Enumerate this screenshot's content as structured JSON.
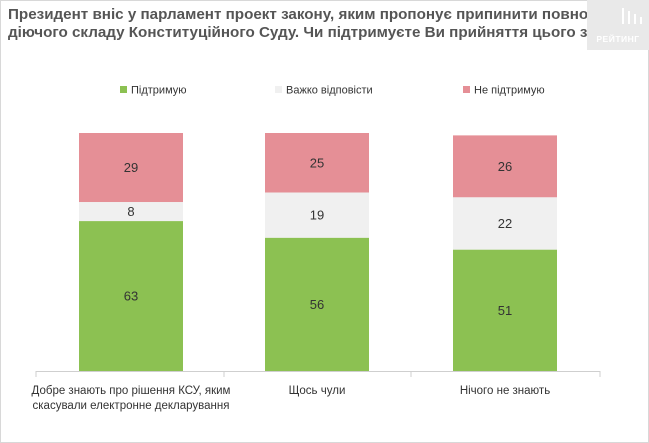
{
  "title_lines": [
    "Президент вніс у парламент проект закону, яким пропонує припинити повноваження",
    "діючого складу Конституційного Суду. Чи підтримуєте Ви прийняття цього закону?"
  ],
  "logo_text": "РЕЙТИНГ",
  "colors": {
    "support": "#8cc152",
    "hard_to_say": "#f0f0f0",
    "not_support": "#e58f96",
    "axis": "#cfcfcf"
  },
  "chart_data": {
    "type": "bar",
    "stacked": true,
    "categories": [
      [
        "Добре знають про рішення КСУ, яким",
        "скасували електронне декларування"
      ],
      [
        "Щось чули"
      ],
      [
        "Нічого не знають"
      ]
    ],
    "series": [
      {
        "name": "Підтримую",
        "values": [
          63,
          56,
          51
        ]
      },
      {
        "name": "Важко відповісти",
        "values": [
          8,
          19,
          22
        ]
      },
      {
        "name": "Не підтримую",
        "values": [
          29,
          25,
          26
        ]
      }
    ],
    "ylim": [
      0,
      100
    ],
    "grid": false,
    "legend_position": "top"
  }
}
